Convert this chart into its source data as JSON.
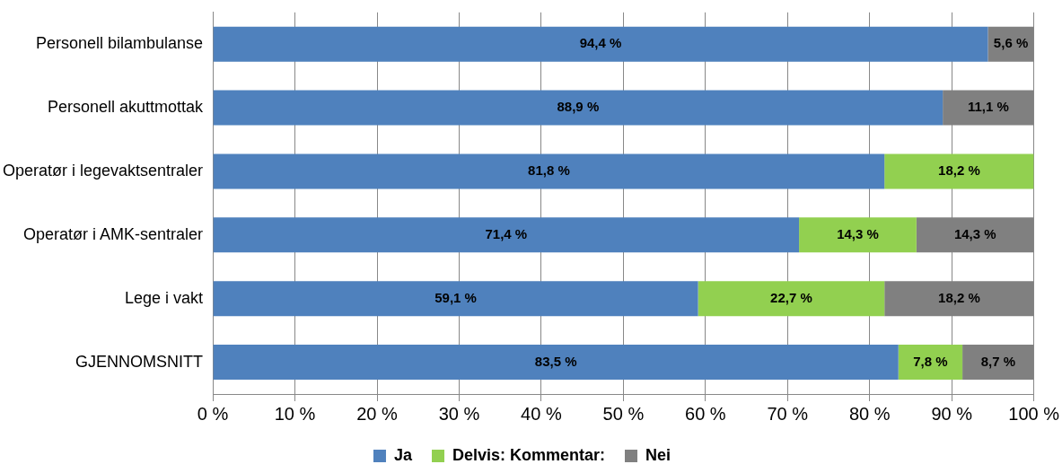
{
  "chart_data": {
    "type": "bar",
    "orientation": "horizontal",
    "stacked": true,
    "categories": [
      "Personell bilambulanse",
      "Personell akuttmottak",
      "Operatør i legevaktsentraler",
      "Operatør i AMK-sentraler",
      "Lege i vakt",
      "GJENNOMSNITT"
    ],
    "series": [
      {
        "name": "Ja",
        "color": "#4f81bd",
        "values": [
          94.4,
          88.9,
          81.8,
          71.4,
          59.1,
          83.5
        ],
        "value_labels": [
          "94,4 %",
          "88,9 %",
          "81,8 %",
          "71,4 %",
          "59,1 %",
          "83,5 %"
        ]
      },
      {
        "name": "Delvis: Kommentar:",
        "color": "#92d050",
        "values": [
          null,
          null,
          18.2,
          14.3,
          22.7,
          7.8
        ],
        "value_labels": [
          null,
          null,
          "18,2 %",
          "14,3 %",
          "22,7 %",
          "7,8 %"
        ]
      },
      {
        "name": "Nei",
        "color": "#808080",
        "values": [
          5.6,
          11.1,
          null,
          14.3,
          18.2,
          8.7
        ],
        "value_labels": [
          "5,6 %",
          "11,1 %",
          null,
          "14,3 %",
          "18,2 %",
          "8,7 %"
        ]
      }
    ],
    "xlim": [
      0,
      100
    ],
    "xticks": [
      {
        "value": 0,
        "label": "0 %"
      },
      {
        "value": 10,
        "label": "10 %"
      },
      {
        "value": 20,
        "label": "20 %"
      },
      {
        "value": 30,
        "label": "30 %"
      },
      {
        "value": 40,
        "label": "40 %"
      },
      {
        "value": 50,
        "label": "50 %"
      },
      {
        "value": 60,
        "label": "60 %"
      },
      {
        "value": 70,
        "label": "70 %"
      },
      {
        "value": 80,
        "label": "80 %"
      },
      {
        "value": 90,
        "label": "90 %"
      },
      {
        "value": 100,
        "label": "100 %"
      }
    ],
    "grid": "x",
    "legend": "bottom"
  }
}
